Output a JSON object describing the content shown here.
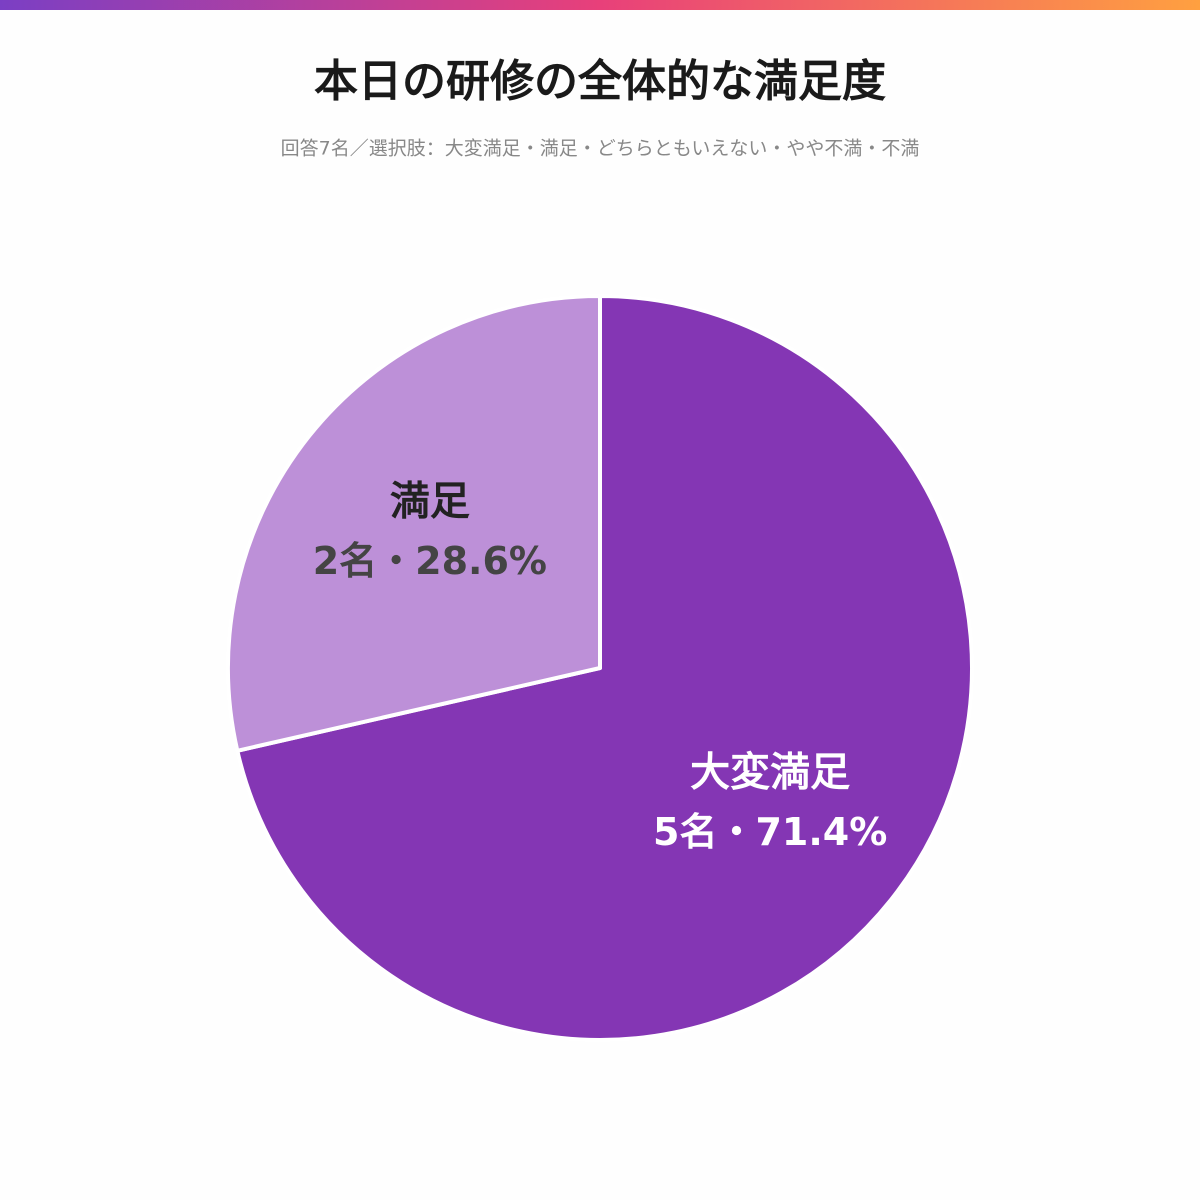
{
  "chart_data": {
    "type": "pie",
    "title": "本日の研修の全体的な満足度",
    "subtitle": "回答7名／選択肢：大変満足・満足・どちらともいえない・やや不満・不満",
    "categories": [
      "大変満足",
      "満足"
    ],
    "values": [
      5,
      2
    ],
    "value_labels": [
      "5名・71.4%",
      "2名・28.6%"
    ],
    "colors": [
      "#8436b4",
      "#bd90d8"
    ]
  }
}
